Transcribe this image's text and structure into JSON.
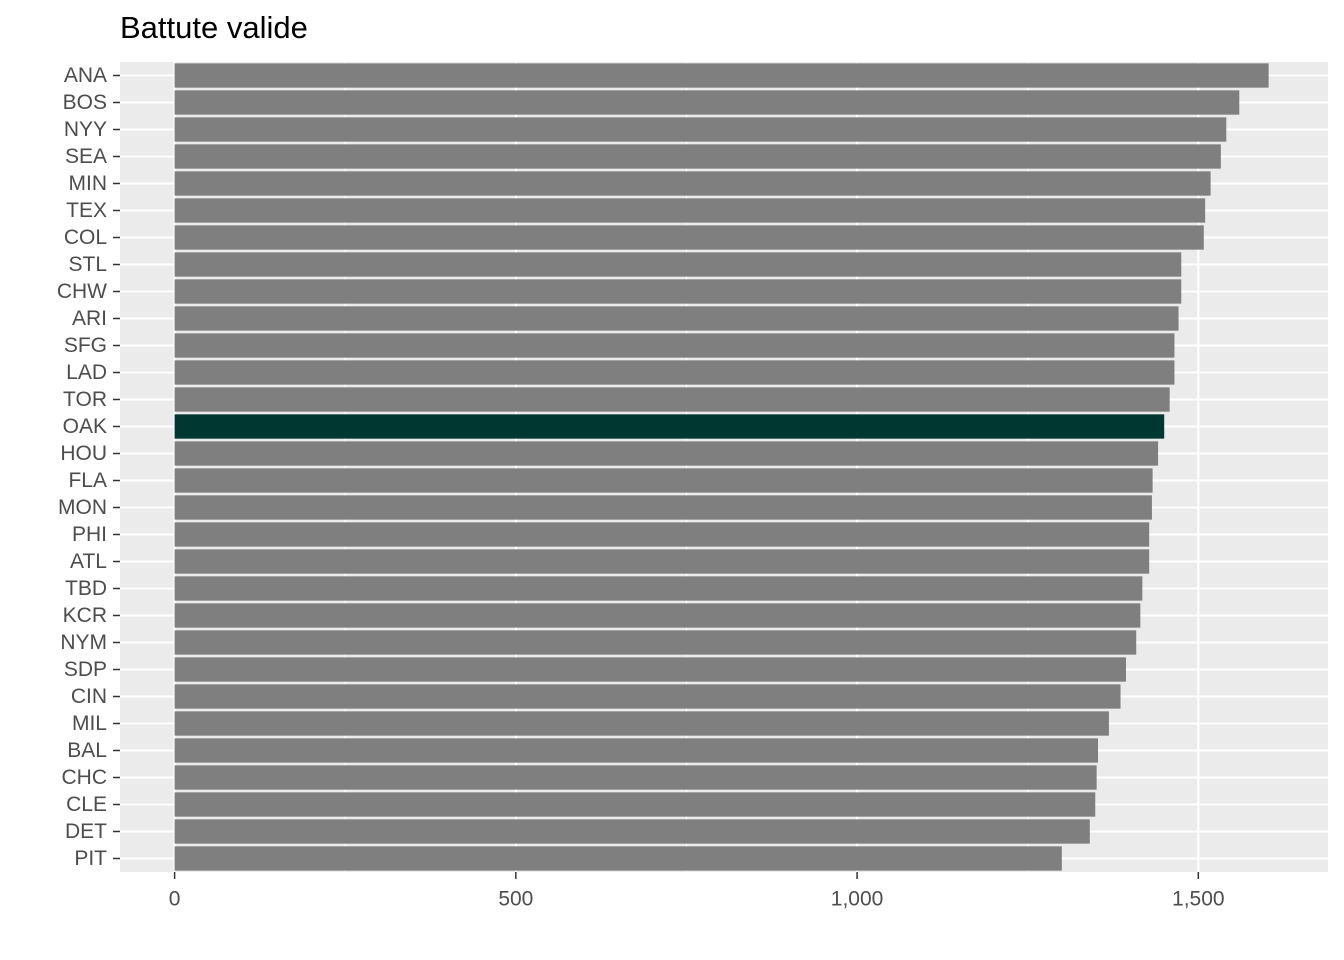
{
  "chart_data": {
    "type": "bar",
    "orientation": "horizontal",
    "title": "Battute valide",
    "xlabel": "",
    "ylabel": "",
    "xlim": [
      -80,
      1690
    ],
    "x_ticks": [
      0,
      500,
      1000,
      1500
    ],
    "x_tick_labels": [
      "0",
      "500",
      "1,000",
      "1,500"
    ],
    "grid": true,
    "legend": "none",
    "categories": [
      "ANA",
      "BOS",
      "NYY",
      "SEA",
      "MIN",
      "TEX",
      "COL",
      "STL",
      "CHW",
      "ARI",
      "SFG",
      "LAD",
      "TOR",
      "OAK",
      "HOU",
      "FLA",
      "MON",
      "PHI",
      "ATL",
      "TBD",
      "KCR",
      "NYM",
      "SDP",
      "CIN",
      "MIL",
      "BAL",
      "CHC",
      "CLE",
      "DET",
      "PIT"
    ],
    "values": [
      1603,
      1560,
      1541,
      1533,
      1518,
      1510,
      1508,
      1475,
      1475,
      1471,
      1465,
      1465,
      1458,
      1450,
      1441,
      1433,
      1432,
      1428,
      1428,
      1418,
      1415,
      1409,
      1394,
      1386,
      1369,
      1353,
      1351,
      1349,
      1341,
      1300
    ],
    "highlight": "OAK",
    "colors": {
      "bar": "#7f7f7f",
      "highlight": "#003831",
      "panel": "#ebebeb",
      "grid": "#ffffff",
      "text": "#4d4d4d",
      "tick": "#333333"
    }
  }
}
